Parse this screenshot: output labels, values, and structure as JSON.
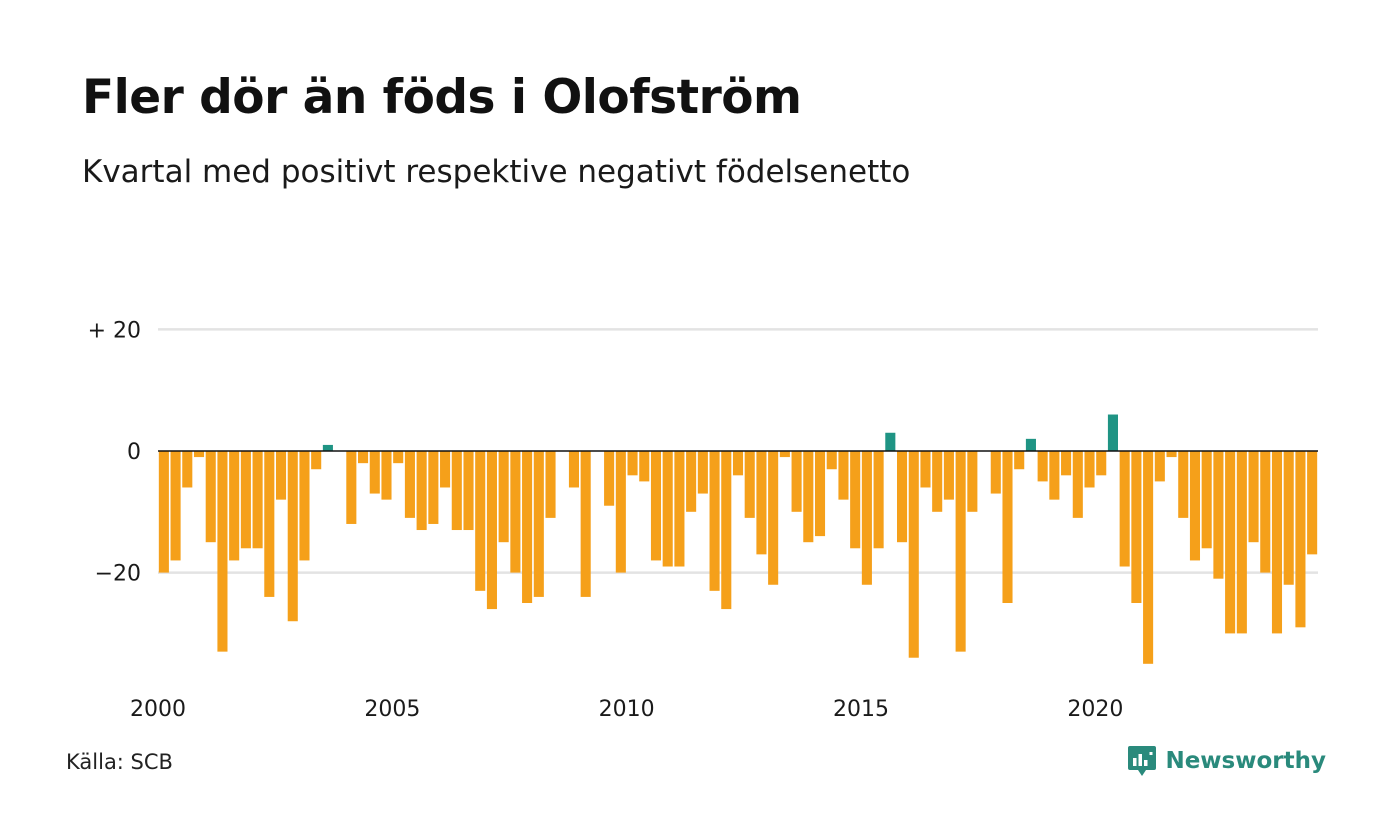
{
  "header": {
    "title": "Fler dör än föds i Olofström",
    "subtitle": "Kvartal med positivt respektive negativt födelsenetto"
  },
  "footer": {
    "source": "Källa: SCB",
    "brand": "Newsworthy"
  },
  "colors": {
    "negative": "#f5a01a",
    "positive": "#1f9484",
    "grid": "#e3e3e3",
    "zero_line": "#111111",
    "brand": "#2a8a7c"
  },
  "icons": {
    "brand": "newsworthy-logo-icon"
  },
  "chart_data": {
    "type": "bar",
    "frequency": "quarterly",
    "start": "2000 Q1",
    "ylim": [
      -38,
      24
    ],
    "yticks": [
      20,
      0,
      -20
    ],
    "ytick_labels": [
      "+ 20",
      "0",
      "−20"
    ],
    "xtick_labels": [
      "2000",
      "2005",
      "2010",
      "2015",
      "2020"
    ],
    "grid": true,
    "legend": "none",
    "values": [
      -20,
      -18,
      -6,
      -1,
      -15,
      -33,
      -18,
      -16,
      -16,
      -24,
      -8,
      -28,
      -18,
      -3,
      1,
      0,
      -12,
      -2,
      -7,
      -8,
      -2,
      -11,
      -13,
      -12,
      -6,
      -13,
      -13,
      -23,
      -26,
      -15,
      -20,
      -25,
      -24,
      -11,
      0,
      -6,
      -24,
      0,
      -9,
      -20,
      -4,
      -5,
      -18,
      -19,
      -19,
      -10,
      -7,
      -23,
      -26,
      -4,
      -11,
      -17,
      -22,
      -1,
      -10,
      -15,
      -14,
      -3,
      -8,
      -16,
      -22,
      -16,
      3,
      -15,
      -34,
      -6,
      -10,
      -8,
      -33,
      -10,
      0,
      -7,
      -25,
      -3,
      2,
      -5,
      -8,
      -4,
      -11,
      -6,
      -4,
      6,
      -19,
      -25,
      -35,
      -5,
      -1,
      -11,
      -18,
      -16,
      -21,
      -30,
      -30,
      -15,
      -20,
      -30,
      -22,
      -29,
      -17
    ]
  }
}
